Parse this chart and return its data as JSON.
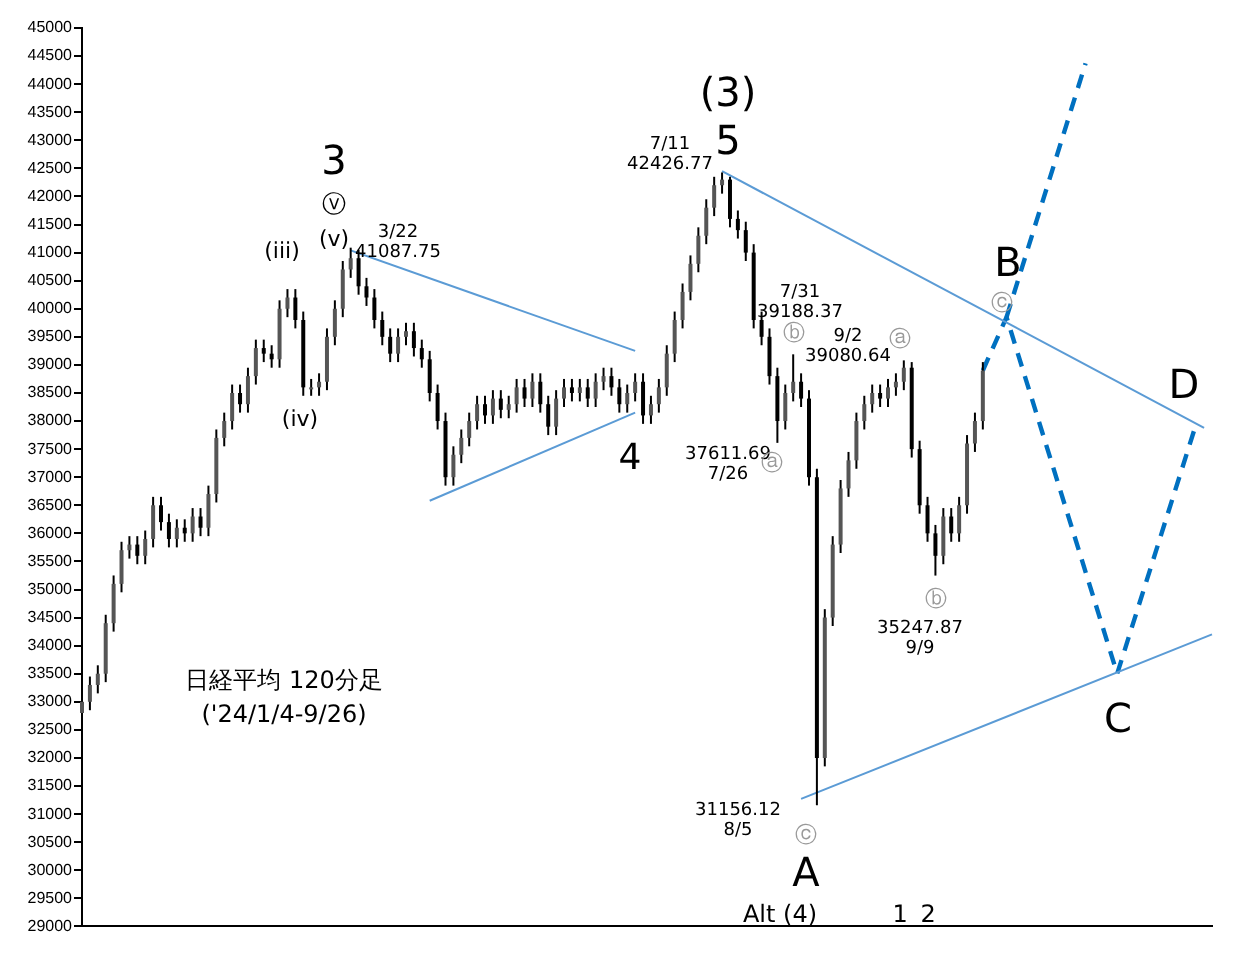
{
  "chart_data": {
    "type": "candlestick",
    "categories": [
      null,
      null,
      null,
      null,
      null,
      null,
      null,
      null,
      null,
      null,
      null,
      null,
      null,
      null,
      null,
      null,
      null,
      null,
      null,
      null,
      null,
      null,
      null,
      null,
      null,
      null,
      null,
      null,
      null,
      null,
      null,
      null,
      null,
      null,
      null,
      null,
      null,
      null,
      null,
      null,
      null,
      null,
      null,
      null,
      null,
      null,
      null,
      null,
      null,
      null,
      null,
      null,
      null,
      null,
      null,
      null,
      null,
      null,
      null,
      null,
      null,
      null,
      null,
      null,
      null,
      null,
      null,
      null,
      null,
      null,
      null,
      null,
      null,
      null,
      null,
      null,
      null,
      null,
      null,
      null,
      null,
      null,
      null,
      null,
      null,
      null,
      null,
      null,
      null,
      null,
      null,
      null,
      null,
      null,
      null,
      null,
      null,
      null,
      null,
      null,
      null,
      null,
      null,
      null,
      null,
      null,
      null,
      null,
      null,
      null,
      null,
      null,
      null,
      null,
      null,
      null,
      null,
      null,
      null,
      null,
      null,
      null,
      null,
      null,
      null,
      null,
      null,
      null,
      null,
      null,
      null,
      null,
      null,
      null,
      null,
      null,
      null,
      null,
      null,
      null,
      null,
      null,
      null,
      null
    ],
    "ohlc": [
      [
        32800,
        33150,
        32650,
        33000
      ],
      [
        33000,
        33450,
        32850,
        33300
      ],
      [
        33300,
        33650,
        33150,
        33500
      ],
      [
        33500,
        34550,
        33350,
        34400
      ],
      [
        34400,
        35250,
        34250,
        35100
      ],
      [
        35100,
        35850,
        34950,
        35700
      ],
      [
        35700,
        35950,
        35550,
        35800
      ],
      [
        35800,
        35950,
        35450,
        35600
      ],
      [
        35600,
        36050,
        35450,
        35900
      ],
      [
        35900,
        36650,
        35750,
        36500
      ],
      [
        36500,
        36650,
        36050,
        36200
      ],
      [
        36200,
        36350,
        35750,
        35900
      ],
      [
        35900,
        36250,
        35750,
        36100
      ],
      [
        36100,
        36250,
        35850,
        36000
      ],
      [
        36000,
        36450,
        35850,
        36300
      ],
      [
        36300,
        36450,
        35950,
        36100
      ],
      [
        36100,
        36850,
        35950,
        36700
      ],
      [
        36700,
        37850,
        36550,
        37700
      ],
      [
        37700,
        38150,
        37550,
        38000
      ],
      [
        38000,
        38650,
        37850,
        38500
      ],
      [
        38500,
        38650,
        38150,
        38300
      ],
      [
        38300,
        38950,
        38150,
        38800
      ],
      [
        38800,
        39450,
        38650,
        39300
      ],
      [
        39300,
        39450,
        39050,
        39200
      ],
      [
        39200,
        39350,
        38950,
        39100
      ],
      [
        39100,
        40150,
        38950,
        40000
      ],
      [
        40000,
        40350,
        39850,
        40200
      ],
      [
        40200,
        40350,
        39650,
        39800
      ],
      [
        39800,
        39950,
        38450,
        38600
      ],
      [
        38600,
        38750,
        38450,
        38600
      ],
      [
        38600,
        38850,
        38450,
        38700
      ],
      [
        38700,
        39650,
        38550,
        39500
      ],
      [
        39500,
        40150,
        39350,
        40000
      ],
      [
        40000,
        40850,
        39850,
        40700
      ],
      [
        40700,
        41087.75,
        40550,
        40900
      ],
      [
        40900,
        41050,
        40250,
        40400
      ],
      [
        40400,
        40550,
        40050,
        40200
      ],
      [
        40200,
        40350,
        39650,
        39800
      ],
      [
        39800,
        39950,
        39350,
        39500
      ],
      [
        39500,
        39650,
        39050,
        39200
      ],
      [
        39200,
        39650,
        39050,
        39500
      ],
      [
        39500,
        39750,
        39350,
        39600
      ],
      [
        39600,
        39750,
        39150,
        39300
      ],
      [
        39300,
        39450,
        38950,
        39100
      ],
      [
        39100,
        39250,
        38350,
        38500
      ],
      [
        38500,
        38650,
        37850,
        38000
      ],
      [
        38000,
        38150,
        36850,
        37000
      ],
      [
        37000,
        37550,
        36850,
        37400
      ],
      [
        37400,
        37850,
        37250,
        37700
      ],
      [
        37700,
        38150,
        37550,
        38000
      ],
      [
        38000,
        38450,
        37850,
        38300
      ],
      [
        38300,
        38450,
        37950,
        38100
      ],
      [
        38100,
        38550,
        37950,
        38400
      ],
      [
        38400,
        38550,
        38050,
        38200
      ],
      [
        38200,
        38450,
        38050,
        38300
      ],
      [
        38300,
        38750,
        38150,
        38600
      ],
      [
        38600,
        38750,
        38250,
        38400
      ],
      [
        38400,
        38850,
        38250,
        38700
      ],
      [
        38700,
        38850,
        38150,
        38300
      ],
      [
        38300,
        38450,
        37750,
        37900
      ],
      [
        37900,
        38550,
        37750,
        38400
      ],
      [
        38400,
        38750,
        38250,
        38600
      ],
      [
        38600,
        38750,
        38350,
        38500
      ],
      [
        38500,
        38750,
        38350,
        38600
      ],
      [
        38600,
        38750,
        38250,
        38400
      ],
      [
        38400,
        38850,
        38250,
        38700
      ],
      [
        38700,
        38950,
        38550,
        38800
      ],
      [
        38800,
        38950,
        38450,
        38600
      ],
      [
        38600,
        38750,
        38150,
        38300
      ],
      [
        38300,
        38650,
        38150,
        38500
      ],
      [
        38500,
        38850,
        38350,
        38700
      ],
      [
        38700,
        38850,
        37950,
        38100
      ],
      [
        38100,
        38450,
        37950,
        38300
      ],
      [
        38300,
        38750,
        38150,
        38600
      ],
      [
        38600,
        39350,
        38450,
        39200
      ],
      [
        39200,
        39950,
        39050,
        39800
      ],
      [
        39800,
        40450,
        39650,
        40300
      ],
      [
        40300,
        40950,
        40150,
        40800
      ],
      [
        40800,
        41450,
        40650,
        41300
      ],
      [
        41300,
        41950,
        41150,
        41800
      ],
      [
        41800,
        42350,
        41650,
        42200
      ],
      [
        42200,
        42426.77,
        42050,
        42300
      ],
      [
        42300,
        42350,
        41450,
        41600
      ],
      [
        41600,
        41750,
        41250,
        41400
      ],
      [
        41400,
        41550,
        40850,
        41000
      ],
      [
        41000,
        41150,
        39650,
        39800
      ],
      [
        39800,
        39950,
        39350,
        39500
      ],
      [
        39500,
        39650,
        38650,
        38800
      ],
      [
        38800,
        38950,
        37611.69,
        38000
      ],
      [
        38000,
        38650,
        37850,
        38500
      ],
      [
        38500,
        39188.37,
        38350,
        38700
      ],
      [
        38700,
        38850,
        38250,
        38400
      ],
      [
        38400,
        38550,
        36850,
        37000
      ],
      [
        37000,
        37150,
        31156.12,
        32000
      ],
      [
        32000,
        34650,
        31850,
        34500
      ],
      [
        34500,
        35950,
        34350,
        35800
      ],
      [
        35800,
        36950,
        35650,
        36800
      ],
      [
        36800,
        37450,
        36650,
        37300
      ],
      [
        37300,
        38150,
        37150,
        38000
      ],
      [
        38000,
        38450,
        37850,
        38300
      ],
      [
        38300,
        38650,
        38150,
        38500
      ],
      [
        38500,
        38650,
        38250,
        38400
      ],
      [
        38400,
        38750,
        38250,
        38600
      ],
      [
        38600,
        38850,
        38450,
        38700
      ],
      [
        38700,
        39080.64,
        38550,
        38950
      ],
      [
        38950,
        39050,
        37350,
        37500
      ],
      [
        37500,
        37650,
        36350,
        36500
      ],
      [
        36500,
        36650,
        35850,
        36000
      ],
      [
        36000,
        36150,
        35247.87,
        35600
      ],
      [
        35600,
        36450,
        35450,
        36300
      ],
      [
        36300,
        36450,
        35850,
        36000
      ],
      [
        36000,
        36650,
        35850,
        36500
      ],
      [
        36500,
        37750,
        36350,
        37600
      ],
      [
        37600,
        38150,
        37450,
        38000
      ],
      [
        38000,
        39050,
        37850,
        38900
      ],
      null,
      null,
      null,
      null,
      null,
      null,
      null,
      null,
      null,
      null,
      null,
      null,
      null,
      null,
      null,
      null,
      null,
      null,
      null,
      null,
      null,
      null,
      null,
      null,
      null,
      null,
      null,
      null,
      null
    ],
    "series": [
      {
        "type": "line",
        "color": "#5b9bd5",
        "values": [
          null,
          null,
          null,
          null,
          null,
          null,
          null,
          null,
          null,
          null,
          null,
          null,
          null,
          null,
          null,
          null,
          null,
          null,
          null,
          null,
          null,
          null,
          null,
          null,
          null,
          null,
          null,
          null,
          null,
          null,
          null,
          null,
          null,
          null,
          41040,
          null,
          null,
          null,
          null,
          null,
          null,
          null,
          null,
          null,
          null,
          null,
          null,
          null,
          null,
          null,
          null,
          null,
          null,
          null,
          null,
          null,
          null,
          null,
          null,
          null,
          null,
          null,
          null,
          null,
          null,
          null,
          null,
          null,
          null,
          null,
          39250,
          null,
          null,
          null,
          null,
          null,
          null,
          null,
          null,
          null,
          null,
          null,
          null,
          null,
          null,
          null,
          null,
          null,
          null,
          null,
          null,
          null,
          null,
          null,
          null,
          null,
          null,
          null,
          null,
          null,
          null,
          null,
          null,
          null,
          null,
          null,
          null,
          null,
          null,
          null,
          null,
          null,
          null,
          null,
          null,
          null,
          null,
          null,
          null,
          null,
          null,
          null,
          null,
          null,
          null,
          null,
          null,
          null,
          null,
          null,
          null,
          null,
          null,
          null,
          null,
          null,
          null,
          null,
          null,
          null,
          null,
          null,
          null,
          null
        ]
      },
      {
        "type": "line",
        "color": "#5b9bd5",
        "values": [
          null,
          null,
          null,
          null,
          null,
          null,
          null,
          null,
          null,
          null,
          null,
          null,
          null,
          null,
          null,
          null,
          null,
          null,
          null,
          null,
          null,
          null,
          null,
          null,
          null,
          null,
          null,
          null,
          null,
          null,
          null,
          null,
          null,
          null,
          null,
          null,
          null,
          null,
          null,
          null,
          null,
          null,
          null,
          null,
          36580,
          null,
          null,
          null,
          null,
          null,
          null,
          null,
          null,
          null,
          null,
          null,
          null,
          null,
          null,
          null,
          null,
          null,
          null,
          null,
          null,
          null,
          null,
          null,
          null,
          null,
          38150,
          null,
          null,
          null,
          null,
          null,
          null,
          null,
          null,
          null,
          null,
          null,
          null,
          null,
          null,
          null,
          null,
          null,
          null,
          null,
          null,
          null,
          null,
          null,
          null,
          null,
          null,
          null,
          null,
          null,
          null,
          null,
          null,
          null,
          null,
          null,
          null,
          null,
          null,
          null,
          null,
          null,
          null,
          null,
          null,
          null,
          null,
          null,
          null,
          null,
          null,
          null,
          null,
          null,
          null,
          null,
          null,
          null,
          null,
          null,
          null,
          null,
          null,
          null,
          null,
          null,
          null,
          null,
          null,
          null,
          null,
          null,
          null,
          null
        ]
      },
      {
        "type": "line",
        "color": "#5b9bd5",
        "values": [
          null,
          null,
          null,
          null,
          null,
          null,
          null,
          null,
          null,
          null,
          null,
          null,
          null,
          null,
          null,
          null,
          null,
          null,
          null,
          null,
          null,
          null,
          null,
          null,
          null,
          null,
          null,
          null,
          null,
          null,
          null,
          null,
          null,
          null,
          null,
          null,
          null,
          null,
          null,
          null,
          null,
          null,
          null,
          null,
          null,
          null,
          null,
          null,
          null,
          null,
          null,
          null,
          null,
          null,
          null,
          null,
          null,
          null,
          null,
          null,
          null,
          null,
          null,
          null,
          null,
          null,
          null,
          null,
          null,
          null,
          null,
          null,
          null,
          null,
          null,
          null,
          null,
          null,
          null,
          null,
          null,
          42450,
          null,
          null,
          null,
          null,
          null,
          null,
          null,
          null,
          null,
          null,
          null,
          null,
          null,
          null,
          null,
          null,
          null,
          null,
          null,
          null,
          null,
          null,
          null,
          null,
          null,
          null,
          null,
          null,
          null,
          null,
          null,
          null,
          null,
          null,
          null,
          null,
          null,
          null,
          null,
          null,
          null,
          null,
          null,
          null,
          null,
          null,
          null,
          null,
          null,
          null,
          null,
          null,
          null,
          null,
          null,
          null,
          null,
          null,
          null,
          null,
          37880,
          null
        ]
      },
      {
        "type": "line",
        "color": "#5b9bd5",
        "values": [
          null,
          null,
          null,
          null,
          null,
          null,
          null,
          null,
          null,
          null,
          null,
          null,
          null,
          null,
          null,
          null,
          null,
          null,
          null,
          null,
          null,
          null,
          null,
          null,
          null,
          null,
          null,
          null,
          null,
          null,
          null,
          null,
          null,
          null,
          null,
          null,
          null,
          null,
          null,
          null,
          null,
          null,
          null,
          null,
          null,
          null,
          null,
          null,
          null,
          null,
          null,
          null,
          null,
          null,
          null,
          null,
          null,
          null,
          null,
          null,
          null,
          null,
          null,
          null,
          null,
          null,
          null,
          null,
          null,
          null,
          null,
          null,
          null,
          null,
          null,
          null,
          null,
          null,
          null,
          null,
          null,
          null,
          null,
          null,
          null,
          null,
          null,
          null,
          null,
          null,
          null,
          31270,
          null,
          null,
          null,
          null,
          null,
          null,
          null,
          null,
          null,
          null,
          null,
          null,
          null,
          null,
          null,
          null,
          null,
          null,
          null,
          null,
          null,
          null,
          null,
          null,
          null,
          null,
          null,
          null,
          null,
          null,
          null,
          null,
          null,
          null,
          null,
          null,
          null,
          null,
          null,
          null,
          null,
          null,
          null,
          null,
          null,
          null,
          null,
          null,
          null,
          null,
          null,
          34200
        ]
      },
      {
        "type": "line",
        "color": "#0070c0",
        "line_style": "dashed",
        "values": [
          null,
          null,
          null,
          null,
          null,
          null,
          null,
          null,
          null,
          null,
          null,
          null,
          null,
          null,
          null,
          null,
          null,
          null,
          null,
          null,
          null,
          null,
          null,
          null,
          null,
          null,
          null,
          null,
          null,
          null,
          null,
          null,
          null,
          null,
          null,
          null,
          null,
          null,
          null,
          null,
          null,
          null,
          null,
          null,
          null,
          null,
          null,
          null,
          null,
          null,
          null,
          null,
          null,
          null,
          null,
          null,
          null,
          null,
          null,
          null,
          null,
          null,
          null,
          null,
          null,
          null,
          null,
          null,
          null,
          null,
          null,
          null,
          null,
          null,
          null,
          null,
          null,
          null,
          null,
          null,
          null,
          null,
          null,
          null,
          null,
          null,
          null,
          null,
          null,
          null,
          null,
          null,
          null,
          null,
          null,
          null,
          null,
          null,
          null,
          null,
          null,
          null,
          null,
          null,
          null,
          null,
          null,
          null,
          null,
          null,
          null,
          null,
          null,
          null,
          38900,
          null,
          null,
          39850,
          null,
          null,
          null,
          null,
          null,
          null,
          null,
          null,
          null,
          null,
          null,
          null,
          null,
          33500,
          null,
          null,
          null,
          null,
          null,
          null,
          null,
          null,
          null,
          37950,
          null,
          null
        ]
      },
      {
        "type": "line",
        "color": "#0070c0",
        "line_style": "dashed",
        "values": [
          null,
          null,
          null,
          null,
          null,
          null,
          null,
          null,
          null,
          null,
          null,
          null,
          null,
          null,
          null,
          null,
          null,
          null,
          null,
          null,
          null,
          null,
          null,
          null,
          null,
          null,
          null,
          null,
          null,
          null,
          null,
          null,
          null,
          null,
          null,
          null,
          null,
          null,
          null,
          null,
          null,
          null,
          null,
          null,
          null,
          null,
          null,
          null,
          null,
          null,
          null,
          null,
          null,
          null,
          null,
          null,
          null,
          null,
          null,
          null,
          null,
          null,
          null,
          null,
          null,
          null,
          null,
          null,
          null,
          null,
          null,
          null,
          null,
          null,
          null,
          null,
          null,
          null,
          null,
          null,
          null,
          null,
          null,
          null,
          null,
          null,
          null,
          null,
          null,
          null,
          null,
          null,
          null,
          null,
          null,
          null,
          null,
          null,
          null,
          null,
          null,
          null,
          null,
          null,
          null,
          null,
          null,
          null,
          null,
          null,
          null,
          null,
          null,
          null,
          null,
          null,
          null,
          39850,
          null,
          null,
          null,
          null,
          null,
          null,
          null,
          null,
          null,
          44370,
          null,
          null,
          null,
          null,
          null,
          null,
          null,
          null,
          null,
          null,
          null,
          null,
          null,
          null,
          null,
          null
        ]
      }
    ],
    "ylim": [
      29000,
      45000
    ],
    "yticks": [
      29000,
      29500,
      30000,
      30500,
      31000,
      31500,
      32000,
      32500,
      33000,
      33500,
      34000,
      34500,
      35000,
      35500,
      36000,
      36500,
      37000,
      37500,
      38000,
      38500,
      39000,
      39500,
      40000,
      40500,
      41000,
      41500,
      42000,
      42500,
      43000,
      43500,
      44000,
      44500,
      45000
    ],
    "annotations": [
      "3",
      "ⓥ",
      "(v)",
      "(iii)",
      "(iv)",
      "3/22\n41087.75",
      "(3)",
      "5",
      "7/11\n42426.77",
      "4",
      "37611.69\n7/26",
      "ⓐ",
      "7/31\n39188.37",
      "ⓑ",
      "9/2\n39080.64",
      "ⓐ",
      "ⓑ",
      "35247.87\n9/9",
      "31156.12\n8/5",
      "ⓒ",
      "A",
      "B",
      "ⓒ",
      "C",
      "D",
      "Alt (4)",
      "1",
      "2",
      "日経平均 120分足",
      "('24/1/4-9/26)"
    ]
  }
}
